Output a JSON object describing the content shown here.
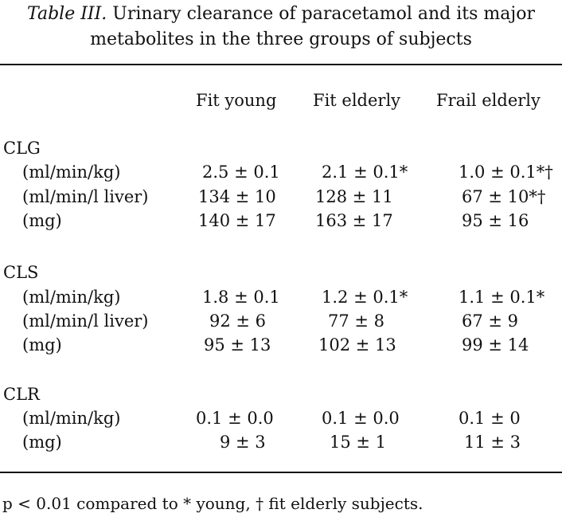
{
  "caption": {
    "label": "Table III.",
    "line1_rest": " Urinary clearance of paracetamol and its major",
    "line2": "metabolites in the three groups of subjects"
  },
  "columns": [
    "Fit young",
    "Fit elderly",
    "Frail elderly"
  ],
  "sections": [
    {
      "name": "CLG",
      "rows": [
        {
          "label": "(ml/min/kg)",
          "values": [
            "2.5 ± 0.1",
            "2.1 ± 0.1*",
            "1.0 ± 0.1*†"
          ]
        },
        {
          "label": "(ml/min/l liver)",
          "values": [
            "134 ± 10",
            "128 ± 11",
            "67 ± 10*†"
          ]
        },
        {
          "label": "(mg)",
          "values": [
            "140 ± 17",
            "163 ± 17",
            "95 ± 16"
          ]
        }
      ]
    },
    {
      "name": "CLS",
      "rows": [
        {
          "label": "(ml/min/kg)",
          "values": [
            "1.8 ± 0.1",
            "1.2 ± 0.1*",
            "1.1 ± 0.1*"
          ]
        },
        {
          "label": "(ml/min/l liver)",
          "values": [
            "92 ± 6",
            "77 ± 8",
            "67 ± 9"
          ]
        },
        {
          "label": "(mg)",
          "values": [
            "95 ± 13",
            "102 ± 13",
            "99 ± 14"
          ]
        }
      ]
    },
    {
      "name": "CLR",
      "rows": [
        {
          "label": "(ml/min/kg)",
          "values": [
            "0.1 ± 0.0",
            "0.1 ± 0.0",
            "0.1 ± 0"
          ]
        },
        {
          "label": "(mg)",
          "values": [
            "9 ± 3",
            "15 ± 1",
            "11 ± 3"
          ]
        }
      ]
    }
  ],
  "footnote": "p < 0.01 compared to * young, † fit elderly subjects."
}
